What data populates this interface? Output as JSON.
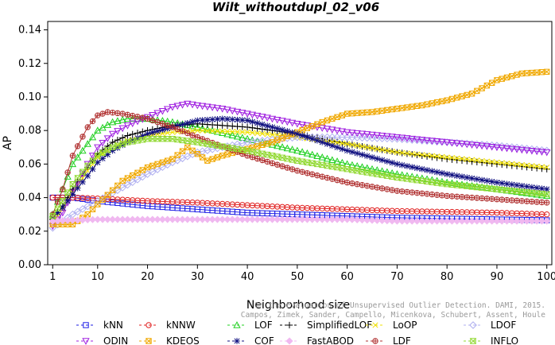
{
  "chart_data": {
    "type": "line",
    "title": "Wilt_withoutdupl_02_v06",
    "xlabel": "Neighborhood size",
    "ylabel": "AP",
    "xlim": [
      0,
      101
    ],
    "ylim": [
      0,
      0.145
    ],
    "xticks": [
      1,
      10,
      20,
      30,
      40,
      50,
      60,
      70,
      80,
      90,
      100
    ],
    "yticks": [
      0.0,
      0.02,
      0.04,
      0.06,
      0.08,
      0.1,
      0.12,
      0.14
    ],
    "ytick_labels": [
      "0.00",
      "0.02",
      "0.04",
      "0.06",
      "0.08",
      "0.10",
      "0.12",
      "0.14"
    ],
    "grid": false,
    "legend_position": "bottom",
    "credit": [
      "Campos, Zimek, Sander, Campello, Micenkova, Schubert, Assent, Houle",
      "On the Evaluation of Unsupervised Outlier Detection. DAMI, 2015."
    ],
    "series": [
      {
        "name": "kNN",
        "color": "#1e1ee6",
        "marker": "square",
        "points": [
          [
            1,
            0.04
          ],
          [
            5,
            0.04
          ],
          [
            10,
            0.038
          ],
          [
            20,
            0.035
          ],
          [
            30,
            0.033
          ],
          [
            40,
            0.031
          ],
          [
            50,
            0.03
          ],
          [
            60,
            0.029
          ],
          [
            70,
            0.028
          ],
          [
            80,
            0.0275
          ],
          [
            90,
            0.027
          ],
          [
            100,
            0.0265
          ]
        ]
      },
      {
        "name": "kNNW",
        "color": "#e02020",
        "marker": "circle",
        "points": [
          [
            1,
            0.04
          ],
          [
            5,
            0.04
          ],
          [
            10,
            0.0395
          ],
          [
            20,
            0.038
          ],
          [
            30,
            0.037
          ],
          [
            40,
            0.0355
          ],
          [
            50,
            0.034
          ],
          [
            60,
            0.033
          ],
          [
            70,
            0.032
          ],
          [
            80,
            0.0315
          ],
          [
            90,
            0.031
          ],
          [
            100,
            0.03
          ]
        ]
      },
      {
        "name": "LOF",
        "color": "#20d020",
        "marker": "triangle-up",
        "points": [
          [
            1,
            0.03
          ],
          [
            3,
            0.045
          ],
          [
            5,
            0.06
          ],
          [
            8,
            0.072
          ],
          [
            10,
            0.08
          ],
          [
            13,
            0.085
          ],
          [
            16,
            0.087
          ],
          [
            20,
            0.087
          ],
          [
            25,
            0.085
          ],
          [
            30,
            0.082
          ],
          [
            40,
            0.075
          ],
          [
            50,
            0.068
          ],
          [
            60,
            0.06
          ],
          [
            70,
            0.054
          ],
          [
            80,
            0.049
          ],
          [
            90,
            0.045
          ],
          [
            100,
            0.041
          ]
        ]
      },
      {
        "name": "SimplifiedLOF",
        "color": "#000000",
        "marker": "plus",
        "points": [
          [
            1,
            0.027
          ],
          [
            3,
            0.035
          ],
          [
            5,
            0.045
          ],
          [
            8,
            0.058
          ],
          [
            10,
            0.066
          ],
          [
            13,
            0.073
          ],
          [
            16,
            0.077
          ],
          [
            20,
            0.08
          ],
          [
            25,
            0.083
          ],
          [
            30,
            0.084
          ],
          [
            40,
            0.082
          ],
          [
            50,
            0.078
          ],
          [
            60,
            0.072
          ],
          [
            70,
            0.067
          ],
          [
            80,
            0.063
          ],
          [
            90,
            0.06
          ],
          [
            100,
            0.057
          ]
        ]
      },
      {
        "name": "LoOP",
        "color": "#f0e000",
        "marker": "x",
        "points": [
          [
            1,
            0.025
          ],
          [
            3,
            0.033
          ],
          [
            5,
            0.043
          ],
          [
            8,
            0.056
          ],
          [
            10,
            0.064
          ],
          [
            13,
            0.07
          ],
          [
            16,
            0.074
          ],
          [
            20,
            0.077
          ],
          [
            25,
            0.079
          ],
          [
            30,
            0.08
          ],
          [
            40,
            0.079
          ],
          [
            50,
            0.076
          ],
          [
            60,
            0.072
          ],
          [
            70,
            0.067
          ],
          [
            80,
            0.064
          ],
          [
            90,
            0.061
          ],
          [
            100,
            0.058
          ]
        ]
      },
      {
        "name": "LDOF",
        "color": "#b0b0f0",
        "marker": "diamond",
        "points": [
          [
            1,
            0.022
          ],
          [
            3,
            0.026
          ],
          [
            5,
            0.03
          ],
          [
            10,
            0.038
          ],
          [
            15,
            0.046
          ],
          [
            20,
            0.054
          ],
          [
            25,
            0.061
          ],
          [
            30,
            0.067
          ],
          [
            40,
            0.073
          ],
          [
            50,
            0.076
          ],
          [
            60,
            0.076
          ],
          [
            70,
            0.075
          ],
          [
            80,
            0.073
          ],
          [
            90,
            0.071
          ],
          [
            100,
            0.068
          ]
        ]
      },
      {
        "name": "ODIN",
        "color": "#a020e0",
        "marker": "triangle-down",
        "points": [
          [
            1,
            0.023
          ],
          [
            3,
            0.031
          ],
          [
            5,
            0.043
          ],
          [
            8,
            0.06
          ],
          [
            10,
            0.07
          ],
          [
            13,
            0.078
          ],
          [
            16,
            0.083
          ],
          [
            20,
            0.088
          ],
          [
            25,
            0.094
          ],
          [
            28,
            0.096
          ],
          [
            30,
            0.095
          ],
          [
            35,
            0.093
          ],
          [
            40,
            0.09
          ],
          [
            50,
            0.084
          ],
          [
            60,
            0.079
          ],
          [
            70,
            0.076
          ],
          [
            80,
            0.073
          ],
          [
            90,
            0.07
          ],
          [
            100,
            0.067
          ]
        ]
      },
      {
        "name": "KDEOS",
        "color": "#f0a800",
        "marker": "square-x",
        "points": [
          [
            1,
            0.024
          ],
          [
            5,
            0.024
          ],
          [
            8,
            0.03
          ],
          [
            10,
            0.036
          ],
          [
            15,
            0.05
          ],
          [
            20,
            0.058
          ],
          [
            25,
            0.063
          ],
          [
            28,
            0.07
          ],
          [
            32,
            0.062
          ],
          [
            35,
            0.065
          ],
          [
            40,
            0.069
          ],
          [
            45,
            0.073
          ],
          [
            50,
            0.079
          ],
          [
            55,
            0.085
          ],
          [
            60,
            0.09
          ],
          [
            65,
            0.091
          ],
          [
            70,
            0.093
          ],
          [
            75,
            0.095
          ],
          [
            80,
            0.098
          ],
          [
            85,
            0.102
          ],
          [
            90,
            0.11
          ],
          [
            95,
            0.114
          ],
          [
            100,
            0.115
          ]
        ]
      },
      {
        "name": "COF",
        "color": "#101080",
        "marker": "asterisk",
        "points": [
          [
            1,
            0.028
          ],
          [
            3,
            0.034
          ],
          [
            5,
            0.042
          ],
          [
            8,
            0.053
          ],
          [
            10,
            0.061
          ],
          [
            13,
            0.068
          ],
          [
            16,
            0.073
          ],
          [
            20,
            0.078
          ],
          [
            25,
            0.082
          ],
          [
            30,
            0.086
          ],
          [
            35,
            0.087
          ],
          [
            40,
            0.086
          ],
          [
            45,
            0.082
          ],
          [
            50,
            0.078
          ],
          [
            60,
            0.068
          ],
          [
            70,
            0.06
          ],
          [
            80,
            0.054
          ],
          [
            90,
            0.049
          ],
          [
            100,
            0.045
          ]
        ]
      },
      {
        "name": "FastABOD",
        "color": "#f0b8f0",
        "marker": "diamond-filled",
        "points": [
          [
            1,
            0.026
          ],
          [
            10,
            0.027
          ],
          [
            20,
            0.027
          ],
          [
            30,
            0.027
          ],
          [
            40,
            0.027
          ],
          [
            50,
            0.027
          ],
          [
            60,
            0.027
          ],
          [
            70,
            0.026
          ],
          [
            80,
            0.026
          ],
          [
            90,
            0.026
          ],
          [
            100,
            0.026
          ]
        ]
      },
      {
        "name": "LDF",
        "color": "#b03030",
        "marker": "circle-plus",
        "points": [
          [
            1,
            0.03
          ],
          [
            3,
            0.045
          ],
          [
            5,
            0.065
          ],
          [
            8,
            0.082
          ],
          [
            10,
            0.089
          ],
          [
            12,
            0.091
          ],
          [
            15,
            0.09
          ],
          [
            20,
            0.087
          ],
          [
            25,
            0.082
          ],
          [
            30,
            0.076
          ],
          [
            40,
            0.065
          ],
          [
            50,
            0.056
          ],
          [
            60,
            0.049
          ],
          [
            70,
            0.044
          ],
          [
            80,
            0.041
          ],
          [
            90,
            0.039
          ],
          [
            100,
            0.037
          ]
        ]
      },
      {
        "name": "INFLO",
        "color": "#90d830",
        "marker": "hourglass",
        "points": [
          [
            1,
            0.029
          ],
          [
            3,
            0.038
          ],
          [
            5,
            0.048
          ],
          [
            8,
            0.059
          ],
          [
            10,
            0.065
          ],
          [
            13,
            0.07
          ],
          [
            16,
            0.073
          ],
          [
            20,
            0.075
          ],
          [
            25,
            0.075
          ],
          [
            30,
            0.073
          ],
          [
            40,
            0.068
          ],
          [
            50,
            0.062
          ],
          [
            60,
            0.057
          ],
          [
            70,
            0.052
          ],
          [
            80,
            0.048
          ],
          [
            90,
            0.045
          ],
          [
            100,
            0.042
          ]
        ]
      }
    ]
  }
}
